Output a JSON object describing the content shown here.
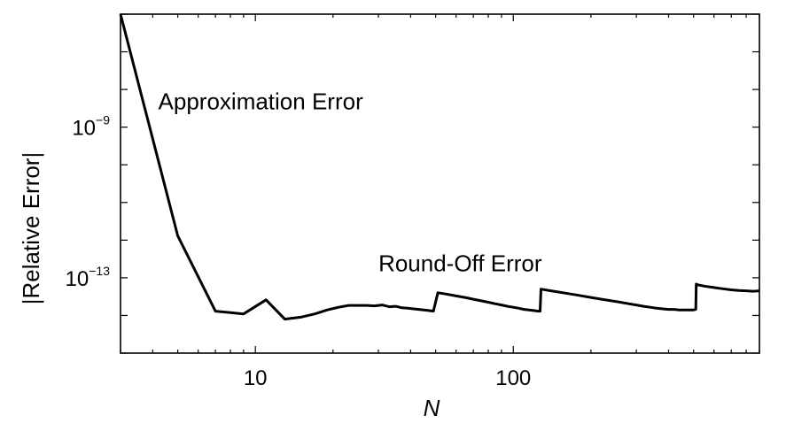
{
  "chart_data": {
    "type": "line",
    "title": "",
    "xlabel": "N",
    "ylabel": "|Relative Error|",
    "xscale": "log",
    "yscale": "log",
    "xlim": [
      3,
      900
    ],
    "ylim": [
      1e-15,
      1e-06
    ],
    "grid": false,
    "legend": "none",
    "x_ticks": [
      {
        "value": 10,
        "label": "10"
      },
      {
        "value": 100,
        "label": "100"
      }
    ],
    "y_ticks": [
      {
        "value": 1e-09,
        "base": "10",
        "exp": "−9"
      },
      {
        "value": 1e-13,
        "base": "10",
        "exp": "−13"
      }
    ],
    "annotations": [
      {
        "text": "Approximation Error",
        "x": 4.2,
        "y": 3e-09
      },
      {
        "text": "Round-Off Error",
        "x": 30,
        "y": 1.5e-13
      }
    ],
    "series": [
      {
        "color": "#000000",
        "x": [
          3,
          5,
          7,
          9,
          11,
          13,
          15,
          17,
          19,
          21,
          23,
          25,
          27,
          29,
          31,
          33,
          35,
          37,
          39,
          41,
          43,
          45,
          47,
          49,
          51,
          55,
          60,
          65,
          70,
          75,
          80,
          85,
          90,
          95,
          100,
          105,
          110,
          115,
          120,
          125,
          127,
          128,
          140,
          160,
          180,
          200,
          220,
          240,
          260,
          280,
          300,
          320,
          340,
          360,
          380,
          400,
          420,
          440,
          460,
          480,
          500,
          510,
          512,
          520,
          550,
          600,
          650,
          700,
          750,
          800,
          850,
          900
        ],
        "y": [
          1e-06,
          1.3e-12,
          1.3e-14,
          1.1e-14,
          2.6e-14,
          8e-15,
          9e-15,
          1.1e-14,
          1.4e-14,
          1.65e-14,
          1.85e-14,
          1.85e-14,
          1.85e-14,
          1.8e-14,
          1.9e-14,
          1.7e-14,
          1.75e-14,
          1.6e-14,
          1.55e-14,
          1.5e-14,
          1.45e-14,
          1.4e-14,
          1.35e-14,
          1.3e-14,
          4e-14,
          3.7e-14,
          3.3e-14,
          3e-14,
          2.7e-14,
          2.45e-14,
          2.25e-14,
          2.05e-14,
          1.9e-14,
          1.75e-14,
          1.65e-14,
          1.55e-14,
          1.45e-14,
          1.4e-14,
          1.35e-14,
          1.3e-14,
          1.3e-14,
          5e-14,
          4.5e-14,
          3.9e-14,
          3.4e-14,
          3e-14,
          2.7e-14,
          2.45e-14,
          2.25e-14,
          2.05e-14,
          1.9e-14,
          1.75e-14,
          1.65e-14,
          1.55e-14,
          1.5e-14,
          1.45e-14,
          1.45e-14,
          1.4e-14,
          1.4e-14,
          1.4e-14,
          1.4e-14,
          1.45e-14,
          6.8e-14,
          6.5e-14,
          6e-14,
          5.5e-14,
          5.1e-14,
          4.8e-14,
          4.6e-14,
          4.5e-14,
          4.4e-14,
          4.5e-14
        ]
      }
    ]
  }
}
